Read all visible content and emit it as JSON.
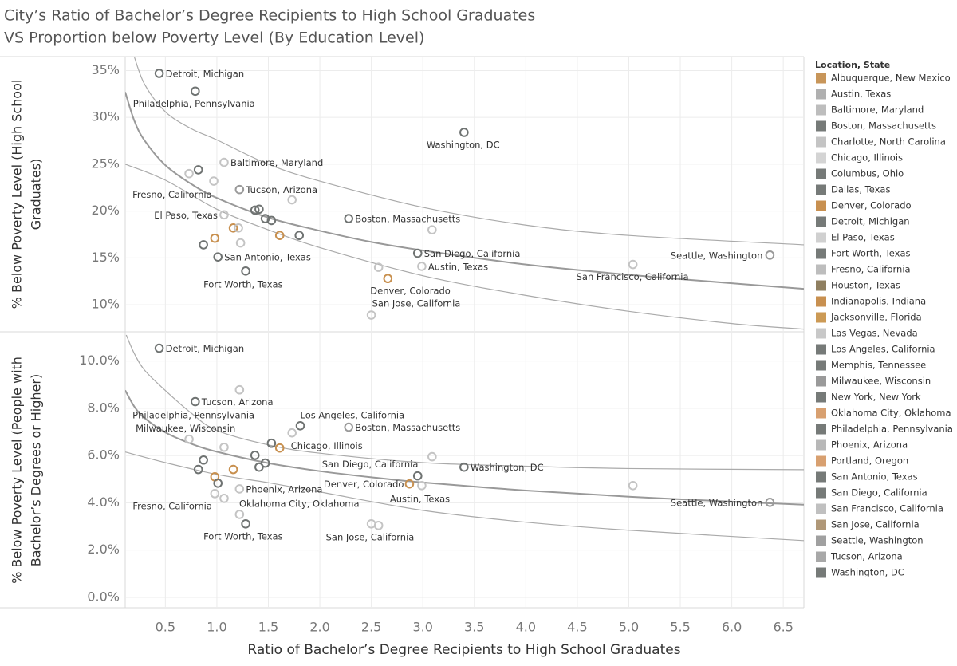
{
  "chart_data": [
    {
      "type": "scatter",
      "title": [
        "City’s Ratio of Bachelor’s Degree Recipients to High School Graduates",
        "VS Proportion below Poverty Level (By Education Level)"
      ],
      "ylabel": [
        "% Below Poverty Level (High School",
        "Graduates)"
      ],
      "xlim": [
        0.11,
        6.7
      ],
      "xticks": [
        0.5,
        {
          "value": 1,
          "label": "1.0"
        },
        1.5,
        {
          "value": 2,
          "label": "2.0"
        },
        2.5,
        {
          "value": 3,
          "label": "3.0"
        },
        3.5,
        {
          "value": 4,
          "label": "4.0"
        },
        4.5,
        {
          "value": 5,
          "label": "5.0"
        },
        5.5,
        {
          "value": 6,
          "label": "6.0"
        },
        6.5
      ],
      "ylim": [
        7.2,
        36.4
      ],
      "yticks": [
        {
          "value": 10,
          "label": "10%"
        },
        {
          "value": 15,
          "label": "15%"
        },
        {
          "value": 20,
          "label": "20%"
        },
        {
          "value": 25,
          "label": "25%"
        },
        {
          "value": 30,
          "label": "30%"
        },
        {
          "value": 35,
          "label": "35%"
        }
      ],
      "grid": true,
      "x": [
        0.44,
        0.79,
        3.4,
        1.07,
        0.82,
        0.73,
        0.97,
        1.22,
        1.73,
        1.37,
        1.41,
        1.47,
        1.53,
        1.07,
        2.28,
        1.16,
        1.21,
        1.61,
        1.8,
        3.09,
        0.87,
        1.23,
        2.95,
        1.01,
        2.57,
        2.99,
        5.04,
        6.37,
        1.28,
        2.66,
        2.5,
        0.98
      ],
      "y": [
        34.7,
        32.8,
        28.4,
        25.2,
        24.4,
        24.0,
        23.2,
        22.3,
        21.2,
        20.1,
        20.2,
        19.2,
        19.0,
        19.6,
        19.2,
        18.2,
        18.2,
        17.4,
        17.4,
        18.0,
        16.4,
        16.6,
        15.5,
        15.1,
        14.0,
        14.1,
        14.3,
        15.3,
        13.6,
        12.8,
        8.9,
        17.1
      ],
      "labels": [
        "Detroit,  Michigan",
        "Philadelphia,  Pennsylvania",
        "Washington,  DC",
        "Baltimore,  Maryland",
        null,
        "Fresno,  California",
        null,
        "Tucson,  Arizona",
        null,
        null,
        null,
        null,
        null,
        "El Paso,  Texas",
        "Boston,  Massachusetts",
        null,
        null,
        null,
        null,
        null,
        null,
        null,
        "San Diego,  California",
        "San Antonio,  Texas",
        null,
        "Austin,  Texas",
        "San Francisco,  California",
        "Seattle,  Washington",
        "Fort Worth,  Texas",
        "Denver,  Colorado",
        "San Jose,  California",
        null
      ],
      "colors": [
        "#6f7372",
        "#6f7372",
        "#6f7372",
        "#c4c4c4",
        "#6f7372",
        "#c4c4c4",
        "#c4c4c4",
        "#9a9a9a",
        "#c4c4c4",
        "#6f7372",
        "#6f7372",
        "#6f7372",
        "#6f7372",
        "#c4c4c4",
        "#6f7372",
        "#c8904f",
        "#c4c4c4",
        "#c8904f",
        "#6f7372",
        "#c4c4c4",
        "#6f7372",
        "#c4c4c4",
        "#6f7372",
        "#6f7372",
        "#c4c4c4",
        "#c4c4c4",
        "#c4c4c4",
        "#9a9a9a",
        "#6f7372",
        "#c8904f",
        "#c4c4c4",
        "#c8904f"
      ],
      "trend_lines": [
        {
          "x": [
            0.11,
            0.2,
            0.3,
            0.5,
            0.75,
            1,
            1.5,
            2,
            2.5,
            3,
            4,
            5,
            6,
            6.7
          ],
          "y": [
            32.7,
            29.6,
            27.5,
            24.9,
            22.9,
            21.4,
            19.3,
            17.9,
            16.7,
            15.8,
            14.3,
            13.2,
            12.3,
            11.7
          ]
        },
        {
          "x": [
            0.2,
            0.3,
            0.5,
            0.75,
            1,
            1.5,
            2,
            3,
            4,
            5,
            6.7
          ],
          "y": [
            36.4,
            33.5,
            30.6,
            28.8,
            27.6,
            25.0,
            23.2,
            20.4,
            18.5,
            17.4,
            16.4
          ]
        },
        {
          "x": [
            0.11,
            0.5,
            1,
            1.5,
            2,
            3,
            4,
            5,
            6,
            6.7
          ],
          "y": [
            25.0,
            23.3,
            20.2,
            18.0,
            16.1,
            13.1,
            11.0,
            9.3,
            8.0,
            7.4
          ]
        }
      ]
    },
    {
      "type": "scatter",
      "ylabel": [
        "% Below Poverty Level (People with",
        "Bachelor’s Degrees or Higher)"
      ],
      "xlabel": "Ratio of Bachelor’s Degree Recipients to High School Graduates",
      "xlim": [
        0.11,
        6.7
      ],
      "xticks": [
        0.5,
        {
          "value": 1,
          "label": "1.0"
        },
        1.5,
        {
          "value": 2,
          "label": "2.0"
        },
        2.5,
        {
          "value": 3,
          "label": "3.0"
        },
        3.5,
        {
          "value": 4,
          "label": "4.0"
        },
        4.5,
        {
          "value": 5,
          "label": "5.0"
        },
        5.5,
        {
          "value": 6,
          "label": "6.0"
        },
        6.5
      ],
      "ylim": [
        -0.44,
        11.2
      ],
      "yticks": [
        {
          "value": 0,
          "label": "0.0%"
        },
        {
          "value": 2,
          "label": "2.0%"
        },
        {
          "value": 4,
          "label": "4.0%"
        },
        {
          "value": 6,
          "label": "6.0%"
        },
        {
          "value": 8,
          "label": "8.0%"
        },
        {
          "value": 10,
          "label": "10.0%"
        }
      ],
      "grid": true,
      "x": [
        0.44,
        0.79,
        1.22,
        0.73,
        0.87,
        0.82,
        1.81,
        2.28,
        1.73,
        1.61,
        1.53,
        1.37,
        1.47,
        1.41,
        1.07,
        3.09,
        2.95,
        3.4,
        1.16,
        0.98,
        1.01,
        2.87,
        2.99,
        5.04,
        6.37,
        1.22,
        0.98,
        1.07,
        1.22,
        1.28,
        2.5,
        2.57
      ],
      "y": [
        10.54,
        8.28,
        8.78,
        6.69,
        5.81,
        5.41,
        7.26,
        7.2,
        6.96,
        6.32,
        6.52,
        6.01,
        5.68,
        5.51,
        6.35,
        5.95,
        5.14,
        5.51,
        5.41,
        5.1,
        4.83,
        4.8,
        4.73,
        4.73,
        4.02,
        4.59,
        4.39,
        4.19,
        3.51,
        3.11,
        3.11,
        3.04
      ],
      "labels": [
        "Detroit,  Michigan",
        "Tucson,  Arizona",
        null,
        "Milwaukee,  Wisconsin",
        "Philadelphia,  Pennsylvania",
        null,
        "Los Angeles,  California",
        "Boston,  Massachusetts",
        null,
        "Chicago,  Illinois",
        null,
        null,
        null,
        null,
        null,
        null,
        "San Diego,  California",
        "Washington,  DC",
        null,
        null,
        null,
        "Denver,  Colorado",
        "Austin,  Texas",
        null,
        "Seattle,  Washington",
        "Phoenix,  Arizona",
        "Fresno,  California",
        "Oklahoma City,  Oklahoma",
        null,
        "Fort Worth,  Texas",
        "San Jose,  California",
        null
      ],
      "colors": [
        "#6f7372",
        "#6f7372",
        "#c4c4c4",
        "#c4c4c4",
        "#6f7372",
        "#6f7372",
        "#6f7372",
        "#9a9a9a",
        "#c4c4c4",
        "#c8904f",
        "#6f7372",
        "#6f7372",
        "#6f7372",
        "#6f7372",
        "#c4c4c4",
        "#c4c4c4",
        "#6f7372",
        "#6f7372",
        "#c8904f",
        "#c8904f",
        "#6f7372",
        "#c8904f",
        "#c4c4c4",
        "#c4c4c4",
        "#9a9a9a",
        "#c4c4c4",
        "#c4c4c4",
        "#c4c4c4",
        "#c4c4c4",
        "#6f7372",
        "#c4c4c4",
        "#c4c4c4"
      ],
      "trend_lines": [
        {
          "x": [
            0.11,
            0.2,
            0.3,
            0.5,
            0.75,
            1,
            1.5,
            2,
            2.5,
            3,
            4,
            5,
            6,
            6.7
          ],
          "y": [
            8.76,
            8.06,
            7.58,
            6.98,
            6.5,
            6.16,
            5.68,
            5.34,
            5.08,
            4.86,
            4.52,
            4.26,
            4.05,
            3.92
          ]
        },
        {
          "x": [
            0.12,
            0.2,
            0.3,
            0.5,
            0.75,
            1,
            1.5,
            2,
            3,
            4,
            5,
            6.7
          ],
          "y": [
            11.1,
            10.3,
            9.6,
            8.75,
            7.8,
            7.06,
            6.45,
            6.1,
            5.7,
            5.55,
            5.45,
            5.4
          ]
        },
        {
          "x": [
            0.11,
            0.5,
            1,
            1.5,
            2,
            3,
            4,
            5,
            6.7
          ],
          "y": [
            6.15,
            5.7,
            5.2,
            4.85,
            4.46,
            3.68,
            3.18,
            2.84,
            2.4
          ]
        }
      ]
    }
  ],
  "legend": {
    "title": "Location, State",
    "items": [
      {
        "name": "Albuquerque,  New Mexico",
        "color": "#c8965a"
      },
      {
        "name": "Austin,  Texas",
        "color": "#b0b0b0"
      },
      {
        "name": "Baltimore,  Maryland",
        "color": "#bdbdbd"
      },
      {
        "name": "Boston,  Massachusetts",
        "color": "#767a78"
      },
      {
        "name": "Charlotte,  North Carolina",
        "color": "#c4c4c4"
      },
      {
        "name": "Chicago,  Illinois",
        "color": "#d4d4d4"
      },
      {
        "name": "Columbus,  Ohio",
        "color": "#767a78"
      },
      {
        "name": "Dallas,  Texas",
        "color": "#767a78"
      },
      {
        "name": "Denver,  Colorado",
        "color": "#c89050"
      },
      {
        "name": "Detroit,  Michigan",
        "color": "#767a78"
      },
      {
        "name": "El Paso,  Texas",
        "color": "#d0d0d0"
      },
      {
        "name": "Fort Worth,  Texas",
        "color": "#767a78"
      },
      {
        "name": "Fresno,  California",
        "color": "#bdbdbd"
      },
      {
        "name": "Houston,  Texas",
        "color": "#8f7f60"
      },
      {
        "name": "Indianapolis,  Indiana",
        "color": "#c89050"
      },
      {
        "name": "Jacksonville,  Florida",
        "color": "#cc9a55"
      },
      {
        "name": "Las Vegas,  Nevada",
        "color": "#c8c8c8"
      },
      {
        "name": "Los Angeles,  California",
        "color": "#767a78"
      },
      {
        "name": "Memphis,  Tennessee",
        "color": "#767a78"
      },
      {
        "name": "Milwaukee,  Wisconsin",
        "color": "#9a9a9a"
      },
      {
        "name": "New York,  New York",
        "color": "#767a78"
      },
      {
        "name": "Oklahoma City,  Oklahoma",
        "color": "#d8a070"
      },
      {
        "name": "Philadelphia,  Pennsylvania",
        "color": "#767a78"
      },
      {
        "name": "Phoenix,  Arizona",
        "color": "#b8b8b8"
      },
      {
        "name": "Portland,  Oregon",
        "color": "#d8a070"
      },
      {
        "name": "San Antonio,  Texas",
        "color": "#767a78"
      },
      {
        "name": "San Diego,  California",
        "color": "#767a78"
      },
      {
        "name": "San Francisco,  California",
        "color": "#c0c0c0"
      },
      {
        "name": "San Jose,  California",
        "color": "#b09878"
      },
      {
        "name": "Seattle,  Washington",
        "color": "#a0a0a0"
      },
      {
        "name": "Tucson,  Arizona",
        "color": "#a8a8a8"
      },
      {
        "name": "Washington,  DC",
        "color": "#767a78"
      }
    ]
  }
}
